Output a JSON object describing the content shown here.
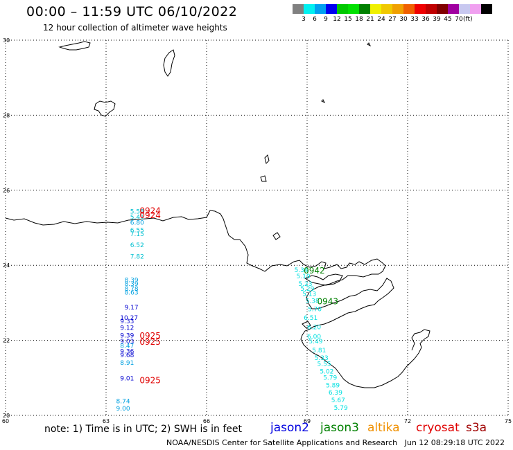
{
  "header": {
    "title": "00:00 – 11:59 UTC 06/10/2022",
    "subtitle": "12 hour collection of altimeter wave heights"
  },
  "legend": {
    "unit": "(ft)",
    "colors": [
      "#808080",
      "#00f0f0",
      "#00a0f0",
      "#0000f0",
      "#00c800",
      "#00e000",
      "#008000",
      "#f0f000",
      "#f0c800",
      "#f0a000",
      "#f06000",
      "#f00000",
      "#c00000",
      "#800000",
      "#a000a0",
      "#c8c8f0",
      "#f0a0f0",
      "#000000"
    ],
    "labels": [
      "3",
      "6",
      "9",
      "12",
      "15",
      "18",
      "21",
      "24",
      "27",
      "30",
      "33",
      "36",
      "39",
      "45",
      "70"
    ]
  },
  "map": {
    "lon_labels": [
      "60",
      "63",
      "66",
      "69",
      "72",
      "75"
    ],
    "lat_labels": [
      "30",
      "28",
      "26",
      "24",
      "22",
      "20"
    ],
    "lon_range": [
      60,
      75
    ],
    "lat_range": [
      20,
      30
    ]
  },
  "observations": [
    {
      "lon": 63.72,
      "lat": 25.38,
      "text": "5.58",
      "color": "#00c0d0"
    },
    {
      "lon": 63.72,
      "lat": 25.23,
      "text": "5.41",
      "color": "#00c0d0"
    },
    {
      "lon": 63.72,
      "lat": 25.08,
      "text": "6.80",
      "color": "#00a0e0"
    },
    {
      "lon": 63.72,
      "lat": 24.88,
      "text": "6.55",
      "color": "#00c0d0"
    },
    {
      "lon": 63.72,
      "lat": 24.78,
      "text": "7.15",
      "color": "#00c0d0"
    },
    {
      "lon": 63.72,
      "lat": 24.48,
      "text": "6.52",
      "color": "#00c0d0"
    },
    {
      "lon": 63.72,
      "lat": 24.18,
      "text": "7.82",
      "color": "#00c0d0"
    },
    {
      "lon": 63.55,
      "lat": 23.55,
      "text": "8.39",
      "color": "#00a0e0"
    },
    {
      "lon": 63.55,
      "lat": 23.45,
      "text": "8.39",
      "color": "#00a0e0"
    },
    {
      "lon": 63.55,
      "lat": 23.32,
      "text": "8.78",
      "color": "#00a0e0"
    },
    {
      "lon": 63.55,
      "lat": 23.22,
      "text": "8.63",
      "color": "#00a0e0"
    },
    {
      "lon": 63.55,
      "lat": 22.82,
      "text": "9.17",
      "color": "#0000d0"
    },
    {
      "lon": 63.42,
      "lat": 22.55,
      "text": "10.27",
      "color": "#0000d0"
    },
    {
      "lon": 63.42,
      "lat": 22.45,
      "text": "9.33",
      "color": "#0000d0"
    },
    {
      "lon": 63.42,
      "lat": 22.28,
      "text": "9.12",
      "color": "#0000d0"
    },
    {
      "lon": 63.42,
      "lat": 22.08,
      "text": "9.39",
      "color": "#0000d0"
    },
    {
      "lon": 63.42,
      "lat": 21.92,
      "text": "9.03",
      "color": "#0000d0"
    },
    {
      "lon": 63.42,
      "lat": 21.8,
      "text": "8.47",
      "color": "#00a0e0"
    },
    {
      "lon": 63.42,
      "lat": 21.65,
      "text": "9.36",
      "color": "#0000d0"
    },
    {
      "lon": 63.42,
      "lat": 21.55,
      "text": "9.68",
      "color": "#0000d0"
    },
    {
      "lon": 63.42,
      "lat": 21.35,
      "text": "8.91",
      "color": "#00a0e0"
    },
    {
      "lon": 63.42,
      "lat": 20.93,
      "text": "9.01",
      "color": "#0000d0"
    },
    {
      "lon": 63.3,
      "lat": 20.32,
      "text": "8.74",
      "color": "#00a0e0"
    },
    {
      "lon": 63.3,
      "lat": 20.13,
      "text": "9.00",
      "color": "#00a0e0"
    },
    {
      "lon": 68.62,
      "lat": 23.82,
      "text": "5.34",
      "color": "#00e0e0"
    },
    {
      "lon": 68.68,
      "lat": 23.65,
      "text": "5.10",
      "color": "#00e0e0"
    },
    {
      "lon": 68.74,
      "lat": 23.45,
      "text": "5.23",
      "color": "#00e0e0"
    },
    {
      "lon": 68.8,
      "lat": 23.32,
      "text": "5.29",
      "color": "#00e0e0"
    },
    {
      "lon": 68.86,
      "lat": 23.18,
      "text": "5.13",
      "color": "#00e0e0"
    },
    {
      "lon": 68.95,
      "lat": 23.0,
      "text": "5.38",
      "color": "#00e0e0"
    },
    {
      "lon": 69.02,
      "lat": 22.78,
      "text": "5.70",
      "color": "#00e0e0"
    },
    {
      "lon": 68.9,
      "lat": 22.55,
      "text": "6.51",
      "color": "#00e0e0"
    },
    {
      "lon": 69.0,
      "lat": 22.3,
      "text": "6.20",
      "color": "#00e0e0"
    },
    {
      "lon": 69.0,
      "lat": 22.05,
      "text": "6.00",
      "color": "#00e0e0"
    },
    {
      "lon": 69.05,
      "lat": 21.92,
      "text": "5.49",
      "color": "#00e0e0"
    },
    {
      "lon": 69.15,
      "lat": 21.68,
      "text": "5.81",
      "color": "#00e0e0"
    },
    {
      "lon": 69.22,
      "lat": 21.48,
      "text": "5.33",
      "color": "#00e0e0"
    },
    {
      "lon": 69.3,
      "lat": 21.32,
      "text": "5.55",
      "color": "#00e0e0"
    },
    {
      "lon": 69.38,
      "lat": 21.12,
      "text": "5.02",
      "color": "#00e0e0"
    },
    {
      "lon": 69.48,
      "lat": 20.95,
      "text": "5.79",
      "color": "#00e0e0"
    },
    {
      "lon": 69.56,
      "lat": 20.75,
      "text": "5.89",
      "color": "#00e0e0"
    },
    {
      "lon": 69.64,
      "lat": 20.55,
      "text": "6.39",
      "color": "#00e0e0"
    },
    {
      "lon": 69.72,
      "lat": 20.35,
      "text": "5.67",
      "color": "#00e0e0"
    },
    {
      "lon": 69.8,
      "lat": 20.15,
      "text": "5.79",
      "color": "#00e0e0"
    }
  ],
  "times": [
    {
      "lon": 64.0,
      "lat": 25.38,
      "text": "0924",
      "color": "#e00000"
    },
    {
      "lon": 64.0,
      "lat": 25.26,
      "text": "0924",
      "color": "#e00000"
    },
    {
      "lon": 64.0,
      "lat": 22.05,
      "text": "0925",
      "color": "#e00000"
    },
    {
      "lon": 64.0,
      "lat": 21.88,
      "text": "0925",
      "color": "#e00000"
    },
    {
      "lon": 64.0,
      "lat": 20.86,
      "text": "0925",
      "color": "#e00000"
    },
    {
      "lon": 68.9,
      "lat": 23.78,
      "text": "0942",
      "color": "#008000"
    },
    {
      "lon": 69.3,
      "lat": 22.96,
      "text": "0943",
      "color": "#008000"
    }
  ],
  "footer": {
    "note": "note: 1) Time is in UTC; 2) SWH is in feet",
    "satellites": [
      {
        "name": "jason2",
        "color": "#0000e0"
      },
      {
        "name": "jason3",
        "color": "#008000"
      },
      {
        "name": "altika",
        "color": "#f09000"
      },
      {
        "name": "cryosat",
        "color": "#e00000"
      },
      {
        "name": "s3a",
        "color": "#a00000"
      }
    ],
    "credit": "NOAA/NESDIS Center for Satellite Applications and Research   Jun 12 08:29:18 UTC 2022"
  }
}
